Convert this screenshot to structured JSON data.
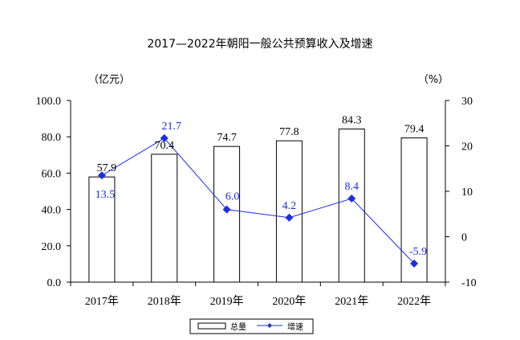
{
  "chart_data": {
    "type": "bar",
    "title": "2017—2022年朝阳一般公共预算收入及增速",
    "left_unit": "（亿元）",
    "right_unit": "（%）",
    "categories": [
      "2017年",
      "2018年",
      "2019年",
      "2020年",
      "2021年",
      "2022年"
    ],
    "series": [
      {
        "name": "总量",
        "type": "bar",
        "axis": "left",
        "values": [
          57.9,
          70.4,
          74.7,
          77.8,
          84.3,
          79.4
        ]
      },
      {
        "name": "增速",
        "type": "line",
        "axis": "right",
        "values": [
          13.5,
          21.7,
          6.0,
          4.2,
          8.4,
          -5.9
        ]
      }
    ],
    "left_axis": {
      "min": 0,
      "max": 100,
      "ticks": [
        "0.0",
        "20.0",
        "40.0",
        "60.0",
        "80.0",
        "100.0"
      ]
    },
    "right_axis": {
      "min": -10,
      "max": 30,
      "ticks": [
        "-10",
        "0",
        "10",
        "20",
        "30"
      ]
    },
    "bar_labels": [
      "57.9",
      "70.4",
      "74.7",
      "77.8",
      "84.3",
      "79.4"
    ],
    "line_labels": [
      "13.5",
      "21.7",
      "6.0",
      "4.2",
      "8.4",
      "-5.9"
    ],
    "line_color": "#1f2fd6",
    "bar_fill": "#ffffff",
    "bar_stroke": "#000000",
    "legend_position": "bottom",
    "grid": false
  }
}
